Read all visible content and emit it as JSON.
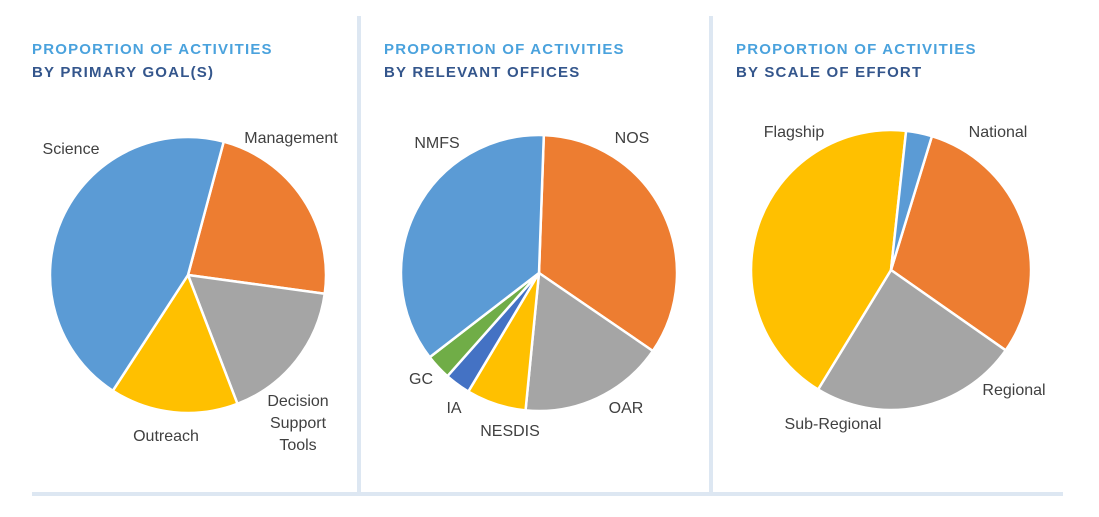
{
  "chart_data": [
    {
      "type": "pie",
      "title_line1": "PROPORTION OF ACTIVITIES",
      "title_line2": "BY PRIMARY GOAL(S)",
      "slices": [
        {
          "label": "Management",
          "value": 23,
          "color": "#ed7d31"
        },
        {
          "label": "Decision Support Tools",
          "value": 17,
          "color": "#a5a5a5"
        },
        {
          "label": "Outreach",
          "value": 15,
          "color": "#ffc000"
        },
        {
          "label": "Science",
          "value": 45,
          "color": "#5b9bd5"
        }
      ]
    },
    {
      "type": "pie",
      "title_line1": "PROPORTION OF ACTIVITIES",
      "title_line2": "BY RELEVANT OFFICES",
      "slices": [
        {
          "label": "NOS",
          "value": 34,
          "color": "#ed7d31"
        },
        {
          "label": "OAR",
          "value": 17,
          "color": "#a5a5a5"
        },
        {
          "label": "NESDIS",
          "value": 7,
          "color": "#ffc000"
        },
        {
          "label": "IA",
          "value": 3,
          "color": "#4472c4"
        },
        {
          "label": "GC",
          "value": 3,
          "color": "#70ad47"
        },
        {
          "label": "NMFS",
          "value": 36,
          "color": "#5b9bd5"
        }
      ]
    },
    {
      "type": "pie",
      "title_line1": "PROPORTION OF ACTIVITIES",
      "title_line2": "BY SCALE OF EFFORT",
      "slices": [
        {
          "label": "National",
          "value": 30,
          "color": "#ed7d31"
        },
        {
          "label": "Regional",
          "value": 24,
          "color": "#a5a5a5"
        },
        {
          "label": "Sub-Regional",
          "value": 43,
          "color": "#ffc000"
        },
        {
          "label": "Flagship",
          "value": 3,
          "color": "#5b9bd5"
        }
      ]
    }
  ]
}
